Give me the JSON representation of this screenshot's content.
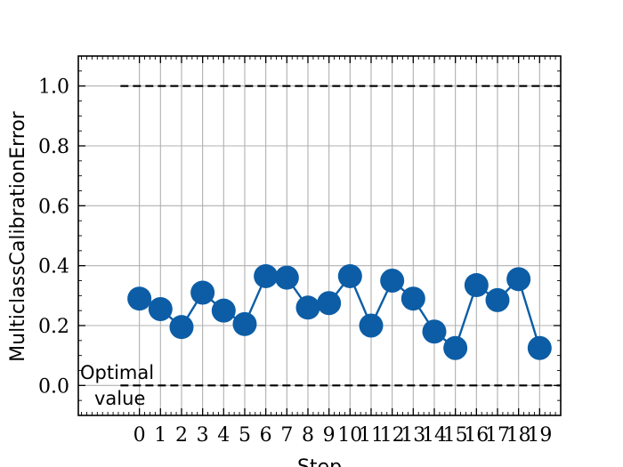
{
  "chart_data": {
    "type": "line",
    "title": "",
    "xlabel": "Step",
    "ylabel": "MulticlassCalibrationError",
    "x": [
      0,
      1,
      2,
      3,
      4,
      5,
      6,
      7,
      8,
      9,
      10,
      11,
      12,
      13,
      14,
      15,
      16,
      17,
      18,
      19
    ],
    "x_tick_labels": [
      "0",
      "1",
      "2",
      "3",
      "4",
      "5",
      "6",
      "7",
      "8",
      "9",
      "10",
      "11",
      "12",
      "13",
      "14",
      "15",
      "16",
      "17",
      "18",
      "19"
    ],
    "values": [
      0.29,
      0.255,
      0.195,
      0.31,
      0.25,
      0.205,
      0.365,
      0.36,
      0.26,
      0.275,
      0.365,
      0.2,
      0.35,
      0.29,
      0.18,
      0.125,
      0.335,
      0.285,
      0.355,
      0.125
    ],
    "xlim": [
      -2.9,
      20
    ],
    "ylim": [
      -0.1,
      1.1
    ],
    "y_ticks": [
      0.0,
      0.2,
      0.4,
      0.6,
      0.8,
      1.0
    ],
    "y_tick_labels": [
      "0.0",
      "0.2",
      "0.4",
      "0.6",
      "0.8",
      "1.0"
    ],
    "reference_lines": [
      {
        "y": 1.0,
        "style": "dashed",
        "x_from": -0.9
      },
      {
        "y": 0.0,
        "style": "dashed",
        "x_from": -0.9
      }
    ],
    "annotation": {
      "line1": "Optimal",
      "line2": "value"
    },
    "grid": true,
    "colors": {
      "series": "#0c5da5",
      "reference": "#000000",
      "grid": "#b0b0b0"
    }
  }
}
